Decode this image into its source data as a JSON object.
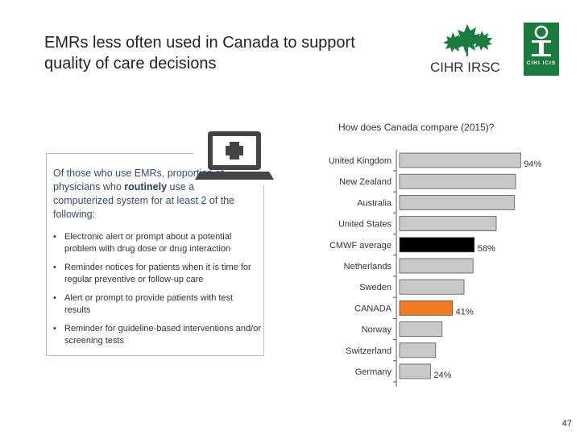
{
  "slide": {
    "title_line1": "EMRs less often used in Canada to support",
    "title_line2": "quality of care decisions",
    "page_number": "47"
  },
  "logos": {
    "cihr_text": "CIHR IRSC",
    "cihi_text": "CIHI ICIS"
  },
  "panel": {
    "intro_pre": "Of those who use EMRs, proportion of physicians who ",
    "intro_bold": "routinely",
    "intro_post": " use a computerized system for at least 2 of the following:",
    "bullets": [
      "Electronic alert or prompt about a potential problem with drug dose or drug interaction",
      "Reminder notices for patients when it is time for regular preventive or follow-up care",
      "Alert or prompt to provide patients with test results",
      "Reminder for guideline-based interventions and/or screening tests"
    ],
    "bullet_marker": "•"
  },
  "colors": {
    "bar_default": "#c9c9c9",
    "bar_cmwf": "#000000",
    "bar_canada": "#f07b22",
    "bar_stroke": "#555555",
    "text": "#333333",
    "brand_green": "#1b7a3e"
  },
  "chart_data": {
    "type": "bar",
    "orientation": "horizontal",
    "title": "How does Canada compare (2015)?",
    "categories": [
      "United Kingdom",
      "New Zealand",
      "Australia",
      "United States",
      "CMWF average",
      "Netherlands",
      "Sweden",
      "CANADA",
      "Norway",
      "Switzerland",
      "Germany"
    ],
    "values": [
      94,
      90,
      89,
      75,
      58,
      57,
      50,
      41,
      33,
      28,
      24
    ],
    "labels": [
      "94%",
      "",
      "",
      "",
      "58%",
      "",
      "",
      "41%",
      "",
      "",
      "24%"
    ],
    "highlight": {
      "CMWF average": "black",
      "CANADA": "orange"
    },
    "xlim": [
      0,
      100
    ]
  }
}
